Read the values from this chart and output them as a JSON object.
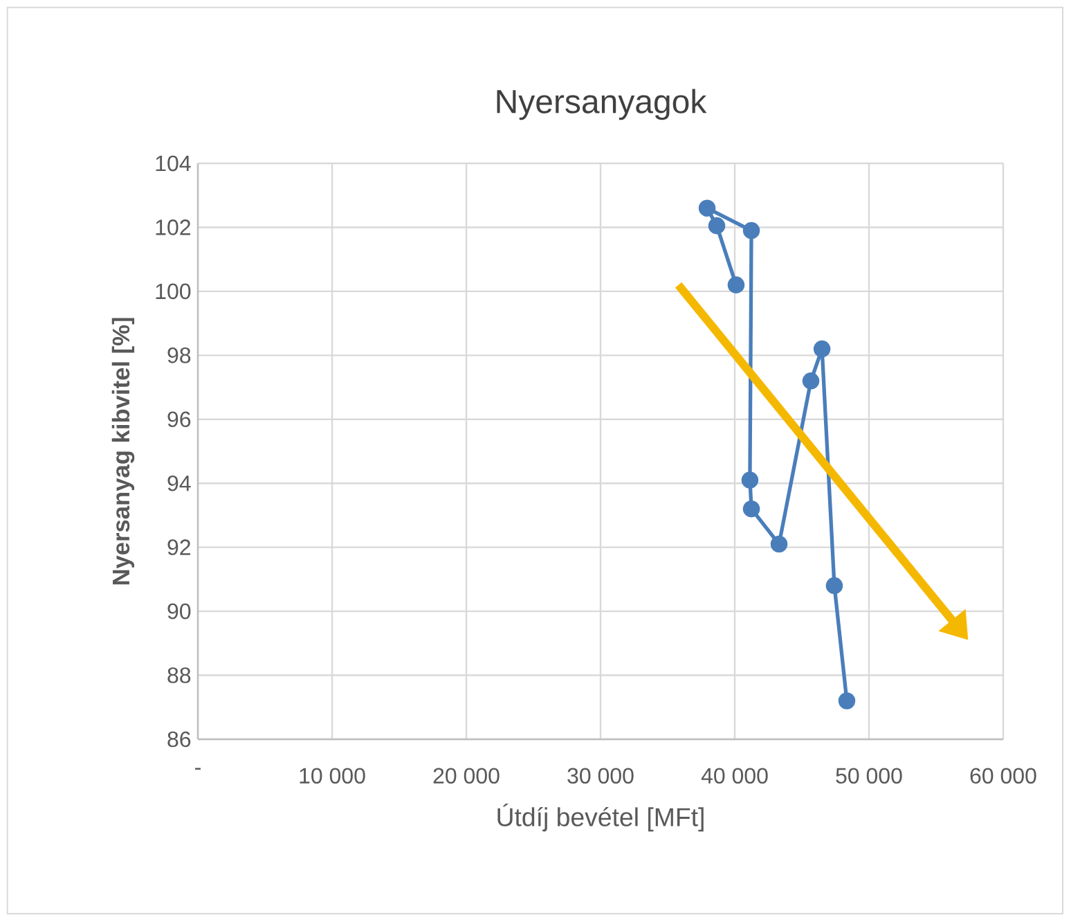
{
  "chart_data": {
    "type": "line",
    "title": "Nyersanyagok",
    "xlabel": "Útdíj bevétel [MFt]",
    "ylabel": "Nyersanyag kibvitel [%]",
    "series": [
      {
        "color": "#4a7ebb",
        "x": [
          40100,
          38660,
          37940,
          41240,
          41130,
          41240,
          43300,
          45670,
          46500,
          47420,
          48350
        ],
        "values": [
          100.2,
          102.05,
          102.6,
          101.9,
          94.1,
          93.2,
          92.1,
          97.2,
          98.2,
          90.8,
          87.2
        ]
      }
    ],
    "marker": "circle",
    "xlim": [
      0,
      60000
    ],
    "ylim": [
      86,
      104
    ],
    "xticks": [
      {
        "value": 0,
        "label": "-"
      },
      {
        "value": 10000,
        "label": "10 000"
      },
      {
        "value": 20000,
        "label": "20 000"
      },
      {
        "value": 30000,
        "label": "30 000"
      },
      {
        "value": 40000,
        "label": "40 000"
      },
      {
        "value": 50000,
        "label": "50 000"
      },
      {
        "value": 60000,
        "label": "60 000"
      }
    ],
    "yticks": [
      86,
      88,
      90,
      92,
      94,
      96,
      98,
      100,
      102,
      104
    ],
    "grid": true
  }
}
